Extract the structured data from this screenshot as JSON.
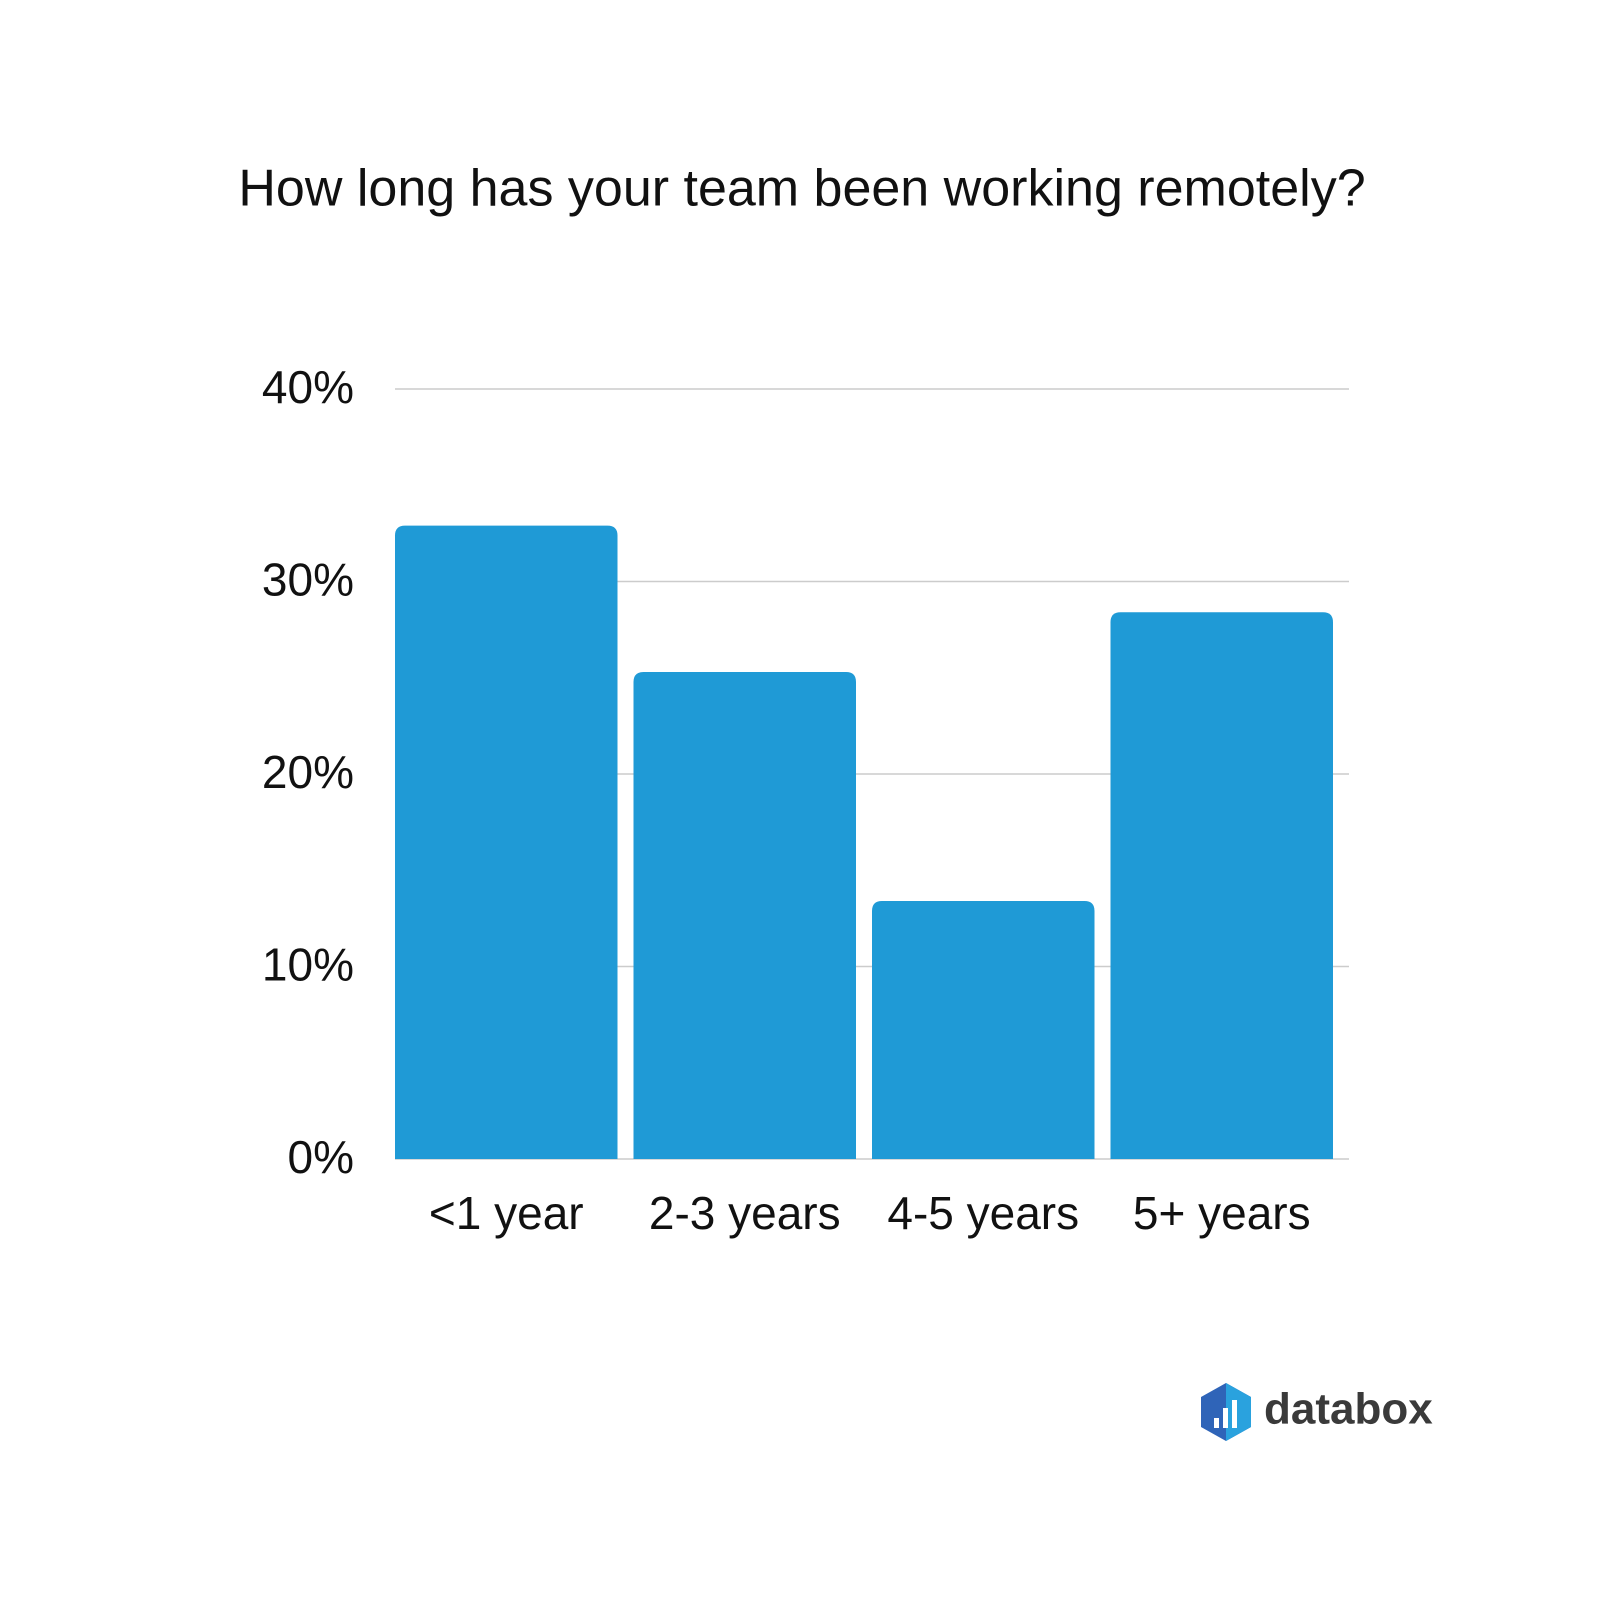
{
  "chart_data": {
    "type": "bar",
    "title": "How long has your team been working remotely?",
    "categories": [
      "<1 year",
      "2-3 years",
      "4-5 years",
      "5+ years"
    ],
    "values": [
      32.9,
      25.3,
      13.4,
      28.4
    ],
    "color": "#1f9ad6",
    "ylim": [
      0,
      40
    ],
    "yticks": [
      {
        "value": 0,
        "label": "0%"
      },
      {
        "value": 10,
        "label": "10%"
      },
      {
        "value": 20,
        "label": "20%"
      },
      {
        "value": 30,
        "label": "30%"
      },
      {
        "value": 40,
        "label": "40%"
      }
    ],
    "grid": true,
    "brand": "databox"
  }
}
